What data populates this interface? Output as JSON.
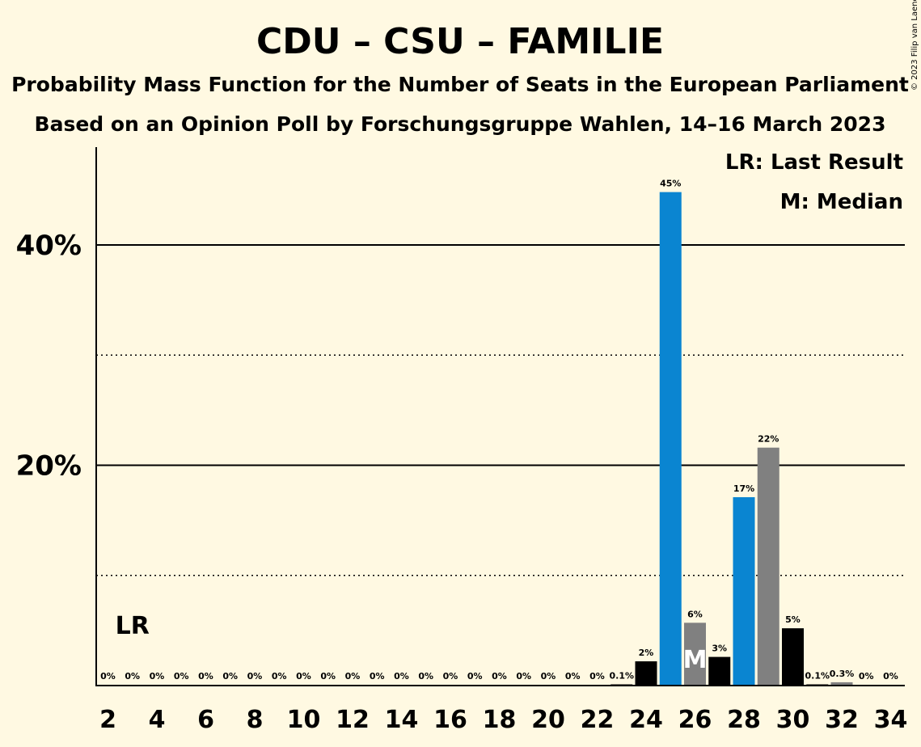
{
  "header": {
    "title": "CDU – CSU – FAMILIE",
    "subtitle1": "Probability Mass Function for the Number of Seats in the European Parliament",
    "subtitle2": "Based on an Opinion Poll by Forschungsgruppe Wahlen, 14–16 March 2023",
    "copyright": "© 2023 Filip van Laenen"
  },
  "legend": {
    "last_result": "LR: Last Result",
    "median": "M: Median"
  },
  "markers": {
    "last_result_label": "LR",
    "last_result_seat": 3,
    "median_label": "M",
    "median_seat": 26
  },
  "colors": {
    "background": "#fff9e2",
    "blue": "#0a85d1",
    "grey": "#808080",
    "black": "#000000"
  },
  "chart_data": {
    "type": "bar",
    "x": [
      2,
      3,
      4,
      5,
      6,
      7,
      8,
      9,
      10,
      11,
      12,
      13,
      14,
      15,
      16,
      17,
      18,
      19,
      20,
      21,
      22,
      23,
      24,
      25,
      26,
      27,
      28,
      29,
      30,
      31,
      32,
      33,
      34
    ],
    "values": [
      0,
      0,
      0,
      0,
      0,
      0,
      0,
      0,
      0,
      0,
      0,
      0,
      0,
      0,
      0,
      0,
      0,
      0,
      0,
      0,
      0,
      0.1,
      2.2,
      44.8,
      5.7,
      2.6,
      17.1,
      21.6,
      5.2,
      0.1,
      0.3,
      0,
      0
    ],
    "data_labels": [
      "0%",
      "0%",
      "0%",
      "0%",
      "0%",
      "0%",
      "0%",
      "0%",
      "0%",
      "0%",
      "0%",
      "0%",
      "0%",
      "0%",
      "0%",
      "0%",
      "0%",
      "0%",
      "0%",
      "0%",
      "0%",
      "0.1%",
      "2%",
      "45%",
      "6%",
      "3%",
      "17%",
      "22%",
      "5%",
      "0.1%",
      "0.3%",
      "0%",
      "0%"
    ],
    "bar_colors": [
      "black",
      "black",
      "black",
      "black",
      "black",
      "black",
      "black",
      "black",
      "black",
      "black",
      "black",
      "black",
      "black",
      "black",
      "black",
      "black",
      "black",
      "black",
      "black",
      "black",
      "black",
      "black",
      "black",
      "blue",
      "grey",
      "black",
      "blue",
      "grey",
      "black",
      "black",
      "grey",
      "black",
      "black"
    ],
    "x_ticks": [
      "2",
      "4",
      "6",
      "8",
      "10",
      "12",
      "14",
      "16",
      "18",
      "20",
      "22",
      "24",
      "26",
      "28",
      "30",
      "32",
      "34"
    ],
    "y_ticks": [
      {
        "value": 20,
        "label": "20%"
      },
      {
        "value": 40,
        "label": "40%"
      }
    ],
    "y_minor_gridlines": [
      10,
      30
    ],
    "ylim": [
      0,
      49
    ],
    "xlabel": "",
    "ylabel": "",
    "legend_position": "top-right"
  }
}
